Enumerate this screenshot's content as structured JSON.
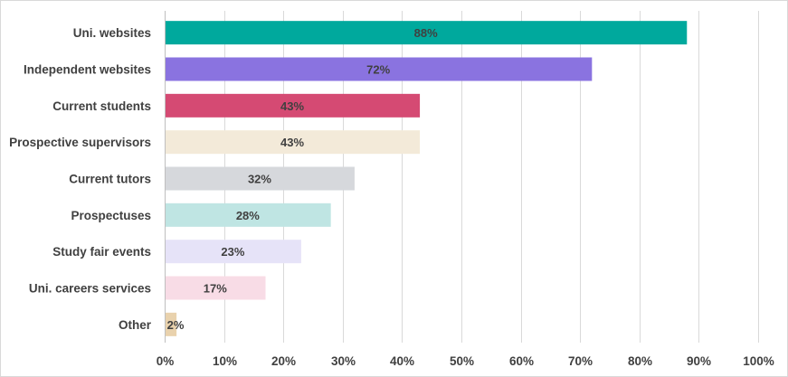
{
  "chart_data": {
    "type": "bar",
    "orientation": "horizontal",
    "categories": [
      "Uni. websites",
      "Independent websites",
      "Current students",
      "Prospective supervisors",
      "Current tutors",
      "Prospectuses",
      "Study fair events",
      "Uni. careers services",
      "Other"
    ],
    "values": [
      88,
      72,
      43,
      43,
      32,
      28,
      23,
      17,
      2
    ],
    "data_labels": [
      "88%",
      "72%",
      "43%",
      "43%",
      "32%",
      "28%",
      "23%",
      "17%",
      "2%"
    ],
    "colors": [
      "#00a99d",
      "#8a73e0",
      "#d54a73",
      "#f3ead9",
      "#d6d8dc",
      "#bfe5e3",
      "#e6e3f8",
      "#f8dce6",
      "#e9d2ad"
    ],
    "x_ticks": [
      "0%",
      "10%",
      "20%",
      "30%",
      "40%",
      "50%",
      "60%",
      "70%",
      "80%",
      "90%",
      "100%"
    ],
    "xlim": [
      0,
      100
    ],
    "title": "",
    "xlabel": "",
    "ylabel": "",
    "grid": "vertical",
    "legend": "none"
  }
}
